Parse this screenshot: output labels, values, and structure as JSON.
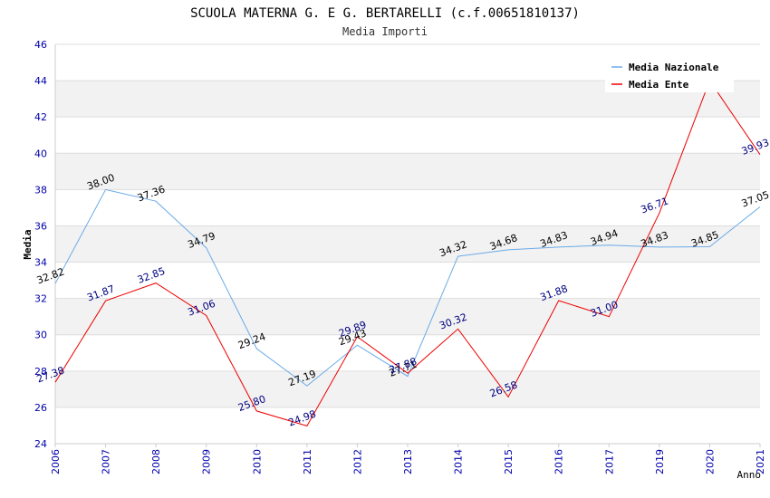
{
  "chart_data": {
    "type": "line",
    "title": "SCUOLA MATERNA G. E G. BERTARELLI (c.f.00651810137)",
    "subtitle": "Media Importi",
    "xlabel": "Anno",
    "ylabel": "Media",
    "ylim": [
      24,
      46
    ],
    "yticks": [
      "24",
      "26",
      "28",
      "30",
      "32",
      "34",
      "36",
      "38",
      "40",
      "42",
      "44",
      "46"
    ],
    "categories": [
      "2006",
      "2007",
      "2008",
      "2009",
      "2010",
      "2011",
      "2012",
      "2013",
      "2014",
      "2015",
      "2016",
      "2017",
      "2019",
      "2020",
      "2021"
    ],
    "legend_position": "top-right",
    "series": [
      {
        "name": "Media Nazionale",
        "color": "#6aaae8",
        "label_color": "#000000",
        "values": [
          32.82,
          38.0,
          37.36,
          34.79,
          29.24,
          27.19,
          29.43,
          27.71,
          34.32,
          34.68,
          34.83,
          34.94,
          34.83,
          34.85,
          37.05
        ],
        "labels": [
          "32.82",
          "38.00",
          "37.36",
          "34.79",
          "29.24",
          "27.19",
          "29.43",
          "27.71",
          "34.32",
          "34.68",
          "34.83",
          "34.94",
          "34.83",
          "34.85",
          "37.05"
        ]
      },
      {
        "name": "Media Ente",
        "color": "#ee0000",
        "label_color": "#000080",
        "values": [
          27.38,
          31.87,
          32.85,
          31.06,
          25.8,
          24.98,
          29.89,
          27.88,
          30.32,
          26.58,
          31.88,
          31.0,
          36.71,
          44.0,
          39.93
        ],
        "labels": [
          "27.38",
          "31.87",
          "32.85",
          "31.06",
          "25.80",
          "24.98",
          "29.89",
          "27.88",
          "30.32",
          "26.58",
          "31.88",
          "31.00",
          "36.71",
          "",
          "39.93"
        ]
      }
    ]
  }
}
